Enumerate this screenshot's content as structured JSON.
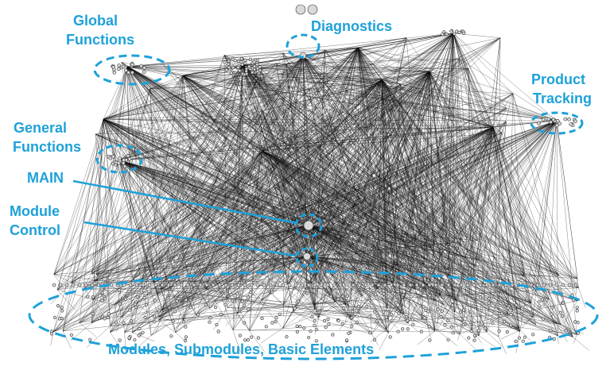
{
  "labels": {
    "global_functions": [
      "Global",
      "Functions"
    ],
    "diagnostics": "Diagnostics",
    "product_tracking": [
      "Product",
      "Tracking"
    ],
    "general_functions": [
      "General",
      "Functions"
    ],
    "main": "MAIN",
    "module_control": [
      "Module",
      "Control"
    ],
    "modules": "Modules, Submodules, Basic Elements"
  },
  "colors": {
    "annotation": "#1ea1d9",
    "edge": "#111111",
    "node_fill": "#d9d9d9",
    "node_stroke": "#333333",
    "background": "#ffffff"
  }
}
